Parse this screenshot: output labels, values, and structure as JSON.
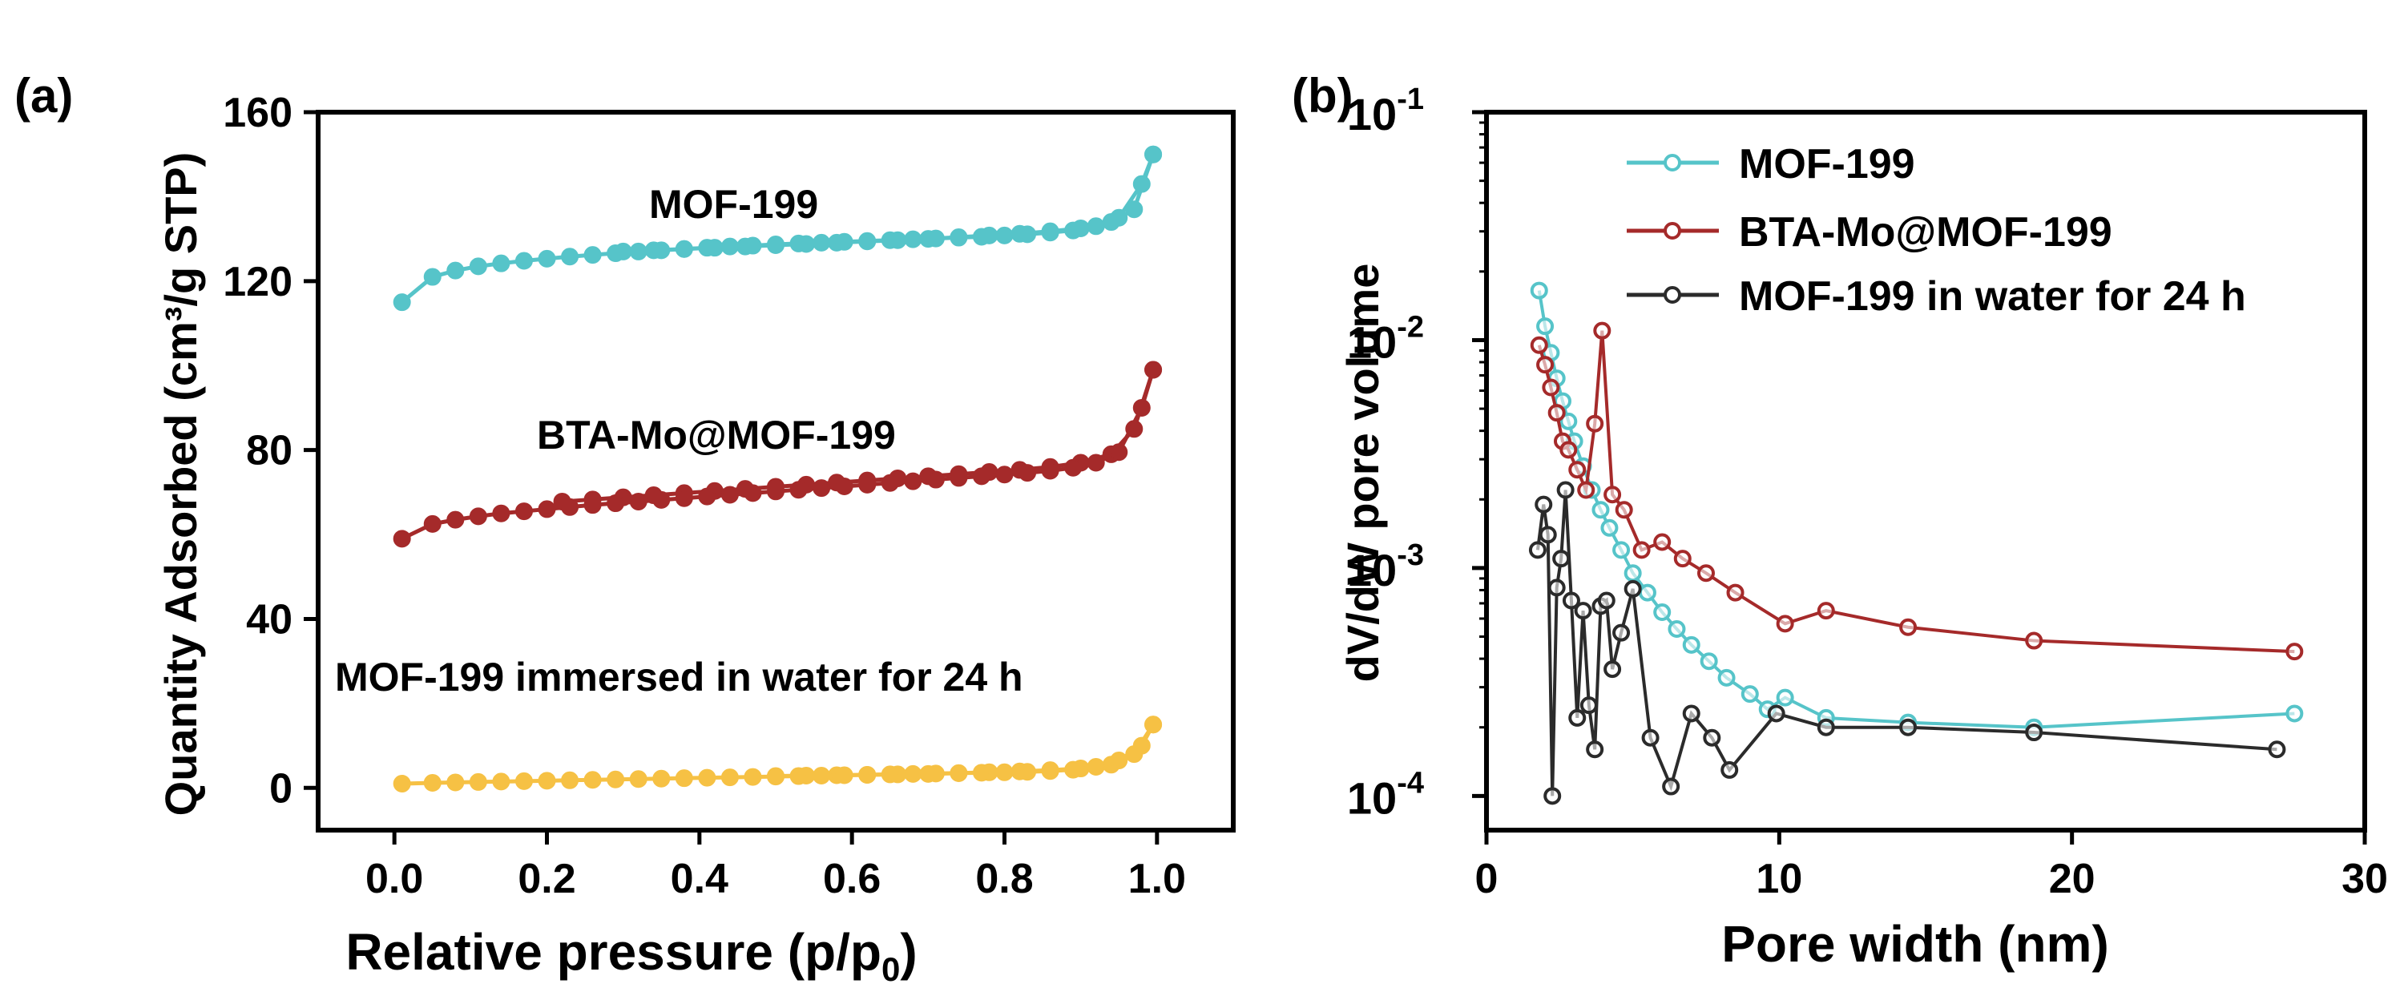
{
  "colors": {
    "mof199": "#56C4C9",
    "bta": "#A52A2A",
    "water": "#F6C144",
    "water_b": "#2b2b2b",
    "axis": "#000000"
  },
  "chart_data": [
    {
      "type": "line",
      "panel_label": "(a)",
      "title": "",
      "xlabel": "Relative pressure (p/p",
      "xlabel_sub": "0",
      "xlabel_close": ")",
      "ylabel": "Quantity Adsorbed (cm³/g STP)",
      "xlim": [
        -0.1,
        1.1
      ],
      "ylim": [
        -10,
        160
      ],
      "xticks": [
        0.0,
        0.2,
        0.4,
        0.6,
        0.8,
        1.0
      ],
      "xtick_labels": [
        "0.0",
        "0.2",
        "0.4",
        "0.6",
        "0.8",
        "1.0"
      ],
      "yticks": [
        0,
        40,
        80,
        120,
        160
      ],
      "ytick_labels": [
        "0",
        "40",
        "80",
        "120",
        "160"
      ],
      "annotations": [
        "MOF-199",
        "BTA-Mo@MOF-199",
        "MOF-199 immersed in water for 24 h"
      ],
      "series": [
        {
          "name": "MOF-199",
          "color_key": "mof199",
          "adsorption": {
            "x": [
              0.01,
              0.05,
              0.08,
              0.11,
              0.14,
              0.17,
              0.2,
              0.23,
              0.26,
              0.29,
              0.32,
              0.35,
              0.38,
              0.41,
              0.44,
              0.47,
              0.5,
              0.53,
              0.56,
              0.59,
              0.62,
              0.65,
              0.68,
              0.71,
              0.74,
              0.77,
              0.8,
              0.83,
              0.86,
              0.89,
              0.92,
              0.95,
              0.98,
              0.995
            ],
            "y": [
              115,
              121,
              122.5,
              123.5,
              124.2,
              124.8,
              125.3,
              125.8,
              126.2,
              126.6,
              127,
              127.3,
              127.6,
              127.9,
              128.2,
              128.4,
              128.7,
              128.9,
              129.1,
              129.3,
              129.5,
              129.7,
              129.9,
              130.1,
              130.3,
              130.5,
              130.8,
              131.1,
              131.5,
              132,
              133,
              135,
              143,
              150
            ]
          },
          "desorption": {
            "x": [
              0.995,
              0.97,
              0.94,
              0.9,
              0.86,
              0.82,
              0.78,
              0.74,
              0.7,
              0.66,
              0.62,
              0.58,
              0.54,
              0.5,
              0.46,
              0.42,
              0.38,
              0.34,
              0.3
            ],
            "y": [
              150,
              137,
              134,
              132.5,
              131.8,
              131.2,
              130.8,
              130.4,
              130,
              129.7,
              129.4,
              129.1,
              128.8,
              128.5,
              128.2,
              127.9,
              127.6,
              127.3,
              127
            ]
          }
        },
        {
          "name": "BTA-Mo@MOF-199",
          "color_key": "bta",
          "adsorption": {
            "x": [
              0.01,
              0.05,
              0.08,
              0.11,
              0.14,
              0.17,
              0.2,
              0.23,
              0.26,
              0.29,
              0.32,
              0.35,
              0.38,
              0.41,
              0.44,
              0.47,
              0.5,
              0.53,
              0.56,
              0.59,
              0.62,
              0.65,
              0.68,
              0.71,
              0.74,
              0.77,
              0.8,
              0.83,
              0.86,
              0.89,
              0.92,
              0.95,
              0.98,
              0.995
            ],
            "y": [
              59,
              62.5,
              63.5,
              64.3,
              65,
              65.5,
              66,
              66.5,
              67,
              67.4,
              67.8,
              68.2,
              68.6,
              69,
              69.4,
              69.8,
              70.2,
              70.6,
              71,
              71.4,
              71.8,
              72.2,
              72.6,
              73,
              73.4,
              73.8,
              74.2,
              74.6,
              75.1,
              75.8,
              77,
              79.5,
              90,
              99
            ]
          },
          "desorption": {
            "x": [
              0.995,
              0.97,
              0.94,
              0.9,
              0.86,
              0.82,
              0.78,
              0.74,
              0.7,
              0.66,
              0.62,
              0.58,
              0.54,
              0.5,
              0.46,
              0.42,
              0.38,
              0.34,
              0.3,
              0.26,
              0.22
            ],
            "y": [
              99,
              85,
              79,
              77,
              76,
              75.3,
              74.8,
              74.3,
              73.8,
              73.3,
              72.8,
              72.3,
              71.8,
              71.3,
              70.8,
              70.3,
              69.8,
              69.3,
              68.8,
              68.3,
              67.8
            ]
          }
        },
        {
          "name": "MOF-199 immersed in water for 24 h",
          "color_key": "water",
          "adsorption": {
            "x": [
              0.01,
              0.05,
              0.08,
              0.11,
              0.14,
              0.17,
              0.2,
              0.23,
              0.26,
              0.29,
              0.32,
              0.35,
              0.38,
              0.41,
              0.44,
              0.47,
              0.5,
              0.53,
              0.56,
              0.59,
              0.62,
              0.65,
              0.68,
              0.71,
              0.74,
              0.77,
              0.8,
              0.83,
              0.86,
              0.89,
              0.92,
              0.95,
              0.98,
              0.995
            ],
            "y": [
              1,
              1.2,
              1.3,
              1.4,
              1.5,
              1.6,
              1.7,
              1.8,
              1.9,
              2,
              2.1,
              2.2,
              2.3,
              2.4,
              2.5,
              2.6,
              2.7,
              2.8,
              2.9,
              3,
              3.1,
              3.2,
              3.3,
              3.4,
              3.5,
              3.6,
              3.7,
              3.8,
              4,
              4.3,
              5,
              6.5,
              10,
              15
            ]
          },
          "desorption": {
            "x": [
              0.995,
              0.97,
              0.94,
              0.9,
              0.86,
              0.82,
              0.78,
              0.74,
              0.7,
              0.66,
              0.62,
              0.58,
              0.54,
              0.5
            ],
            "y": [
              15,
              8,
              5.5,
              4.6,
              4.2,
              3.9,
              3.7,
              3.5,
              3.3,
              3.2,
              3.1,
              3,
              2.9,
              2.8
            ]
          }
        }
      ]
    },
    {
      "type": "line",
      "panel_label": "(b)",
      "title": "",
      "xlabel": "Pore width (nm)",
      "ylabel": "dV/dW pore volume",
      "yscale": "log",
      "xlim": [
        0,
        30
      ],
      "ylim_log10": [
        -4.15,
        -1
      ],
      "xticks": [
        0,
        10,
        20,
        30
      ],
      "xtick_labels": [
        "0",
        "10",
        "20",
        "30"
      ],
      "yticks_exp": [
        -4,
        -3,
        -2,
        -1
      ],
      "ytick_base": "10",
      "ytick_exps": [
        "-4",
        "-3",
        "-2",
        "-1"
      ],
      "legend_position": "top-right",
      "series": [
        {
          "name": "MOF-199",
          "color_key": "mof199",
          "x": [
            1.8,
            2.0,
            2.2,
            2.4,
            2.6,
            2.8,
            3.0,
            3.3,
            3.6,
            3.9,
            4.2,
            4.6,
            5.0,
            5.5,
            6.0,
            6.5,
            7.0,
            7.6,
            8.2,
            9.0,
            9.6,
            10.2,
            11.6,
            14.4,
            18.7,
            27.6
          ],
          "y": [
            0.0165,
            0.0115,
            0.0088,
            0.0068,
            0.0054,
            0.0044,
            0.0036,
            0.0028,
            0.0022,
            0.0018,
            0.0015,
            0.0012,
            0.00095,
            0.00078,
            0.00064,
            0.00054,
            0.00046,
            0.00039,
            0.00033,
            0.00028,
            0.00024,
            0.00027,
            0.00022,
            0.00021,
            0.0002,
            0.00023
          ]
        },
        {
          "name": "BTA-Mo@MOF-199",
          "color_key": "bta",
          "x": [
            1.8,
            2.0,
            2.2,
            2.4,
            2.6,
            2.8,
            3.1,
            3.4,
            3.7,
            3.95,
            4.3,
            4.7,
            5.3,
            6.0,
            6.7,
            7.5,
            8.5,
            10.2,
            11.6,
            14.4,
            18.7,
            27.6
          ],
          "y": [
            0.0095,
            0.0078,
            0.0062,
            0.0048,
            0.0036,
            0.0033,
            0.0027,
            0.0022,
            0.0043,
            0.011,
            0.0021,
            0.0018,
            0.0012,
            0.0013,
            0.0011,
            0.00095,
            0.00078,
            0.00057,
            0.00065,
            0.00055,
            0.00048,
            0.00043
          ]
        },
        {
          "name": "MOF-199 in water for 24 h",
          "color_key": "water_b",
          "x": [
            1.75,
            1.95,
            2.1,
            2.25,
            2.4,
            2.55,
            2.7,
            2.9,
            3.1,
            3.3,
            3.5,
            3.7,
            3.9,
            4.1,
            4.3,
            4.6,
            5.0,
            5.6,
            6.3,
            7.0,
            7.7,
            8.3,
            9.9,
            11.6,
            14.4,
            18.7,
            27.0
          ],
          "y": [
            0.0012,
            0.0019,
            0.0014,
            0.0001,
            0.00082,
            0.0011,
            0.0022,
            0.00072,
            0.00022,
            0.00065,
            0.00025,
            0.00016,
            0.00068,
            0.00072,
            0.00036,
            0.00052,
            0.00081,
            0.00018,
            0.00011,
            0.00023,
            0.00018,
            0.00013,
            0.00023,
            0.0002,
            0.0002,
            0.00019,
            0.00016
          ]
        }
      ]
    }
  ]
}
